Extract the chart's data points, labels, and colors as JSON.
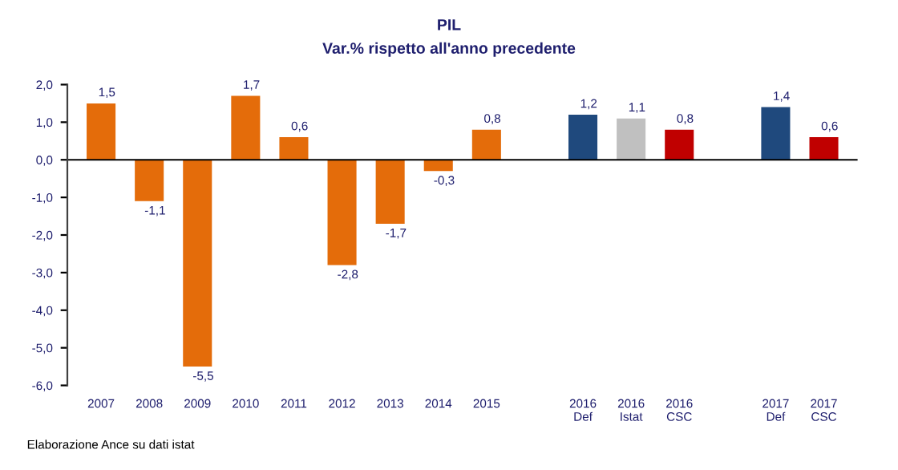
{
  "chart_data": {
    "type": "bar",
    "title": "PIL",
    "subtitle": "Var.% rispetto all'anno precedente",
    "categories": [
      "2007",
      "2008",
      "2009",
      "2010",
      "2011",
      "2012",
      "2013",
      "2014",
      "2015",
      null,
      "2016\nDef",
      "2016\nIstat",
      "2016\nCSC",
      null,
      "2017\nDef",
      "2017\nCSC"
    ],
    "values": [
      1.5,
      -1.1,
      -5.5,
      1.7,
      0.6,
      -2.8,
      -1.7,
      -0.3,
      0.8,
      null,
      1.2,
      1.1,
      0.8,
      null,
      1.4,
      0.6
    ],
    "colors": [
      "#e46c0a",
      "#e46c0a",
      "#e46c0a",
      "#e46c0a",
      "#e46c0a",
      "#e46c0a",
      "#e46c0a",
      "#e46c0a",
      "#e46c0a",
      null,
      "#1f497d",
      "#c0c0c0",
      "#c00000",
      null,
      "#1f497d",
      "#c00000"
    ],
    "value_labels": [
      "1,5",
      "-1,1",
      "-5,5",
      "1,7",
      "0,6",
      "-2,8",
      "-1,7",
      "-0,3",
      "0,8",
      null,
      "1,2",
      "1,1",
      "0,8",
      null,
      "1,4",
      "0,6"
    ],
    "ylim": [
      -6,
      2
    ],
    "yticks": [
      {
        "value": -6,
        "label": "-6,0"
      },
      {
        "value": -5,
        "label": "-5,0"
      },
      {
        "value": -4,
        "label": "-4,0"
      },
      {
        "value": -3,
        "label": "-3,0"
      },
      {
        "value": -2,
        "label": "-2,0"
      },
      {
        "value": -1,
        "label": "-1,0"
      },
      {
        "value": 0,
        "label": "0,0"
      },
      {
        "value": 1,
        "label": "1,0"
      },
      {
        "value": 2,
        "label": "2,0"
      }
    ],
    "ref_lines": [
      {
        "axis": "y",
        "value": 0,
        "color": "#000000"
      }
    ],
    "annotations": [
      "Elaborazione Ance su dati istat"
    ],
    "grid": false,
    "legend": false
  }
}
